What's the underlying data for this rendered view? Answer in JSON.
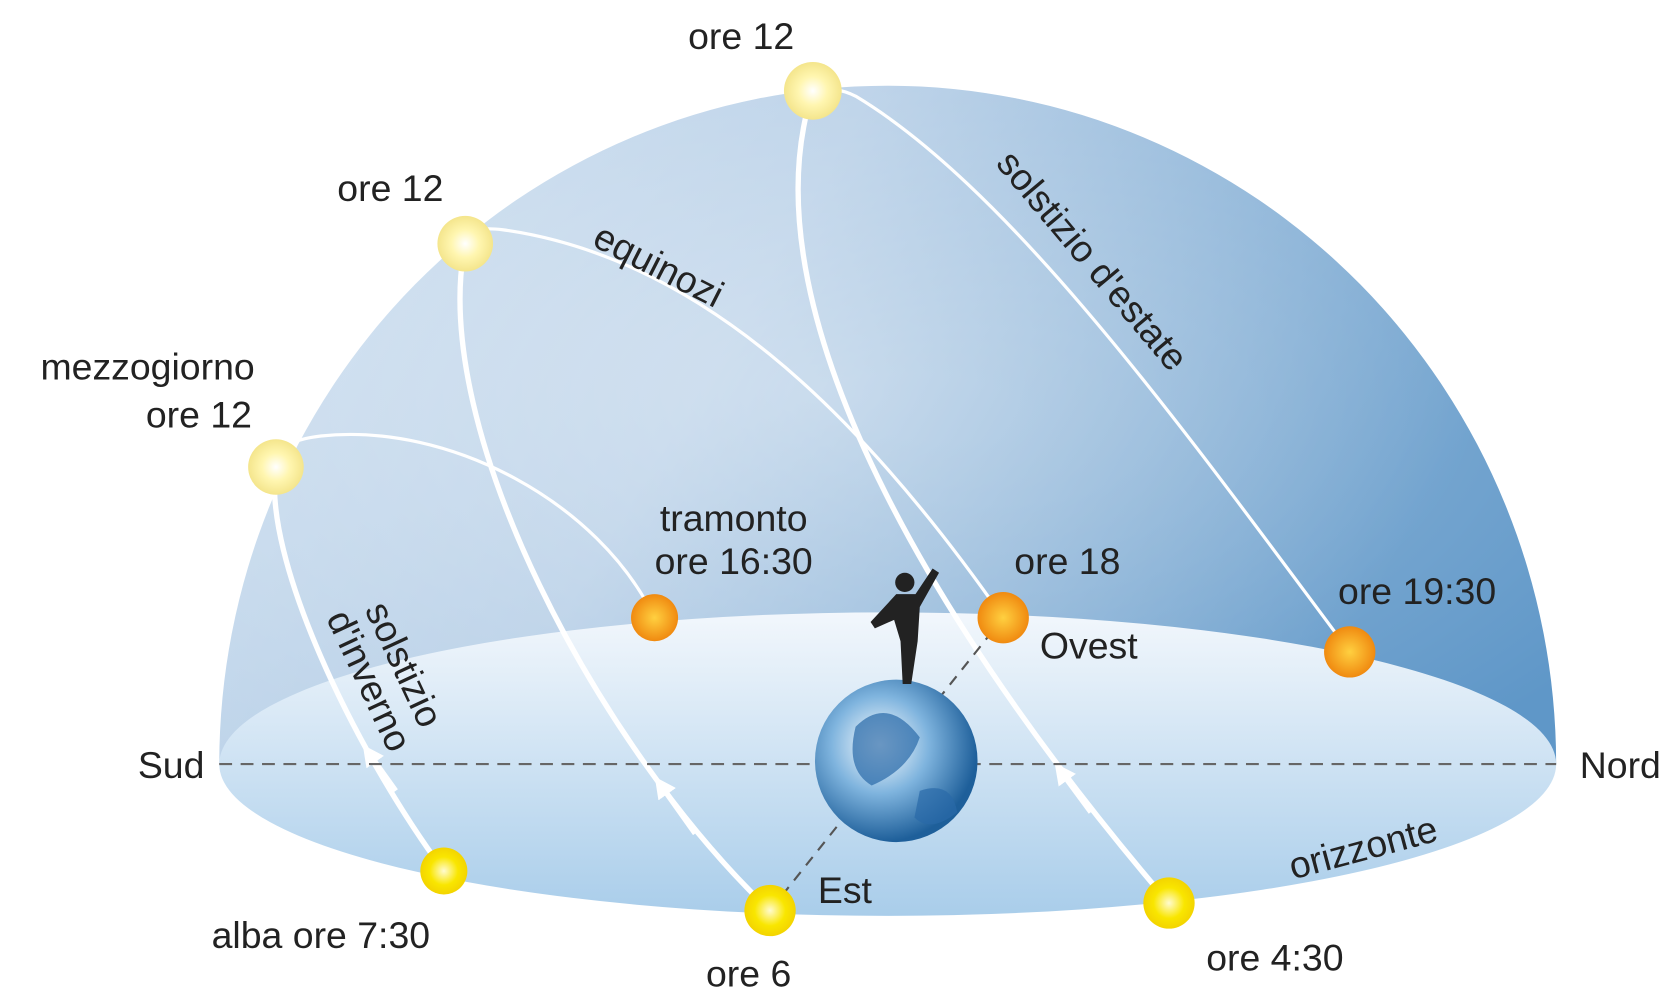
{
  "winter_solstice": {
    "name": [
      "solstizio",
      "d'inverno"
    ],
    "noon": [
      "mezzogiorno",
      "ore 12"
    ],
    "sunset": [
      "tramonto",
      "ore 16:30"
    ],
    "sunrise": "alba ore 7:30"
  },
  "equinoxes": {
    "name": "equinozi",
    "noon": "ore 12",
    "sunset": "ore 18",
    "sunrise": "ore 6"
  },
  "summer_solstice": {
    "name": "solstizio d'estate",
    "noon": "ore 12",
    "sunset": "ore 19:30",
    "sunrise": "ore 4:30"
  },
  "directions": {
    "south": "Sud",
    "north": "Nord",
    "east": "Est",
    "west": "Ovest"
  },
  "horizon": "orizzonte"
}
